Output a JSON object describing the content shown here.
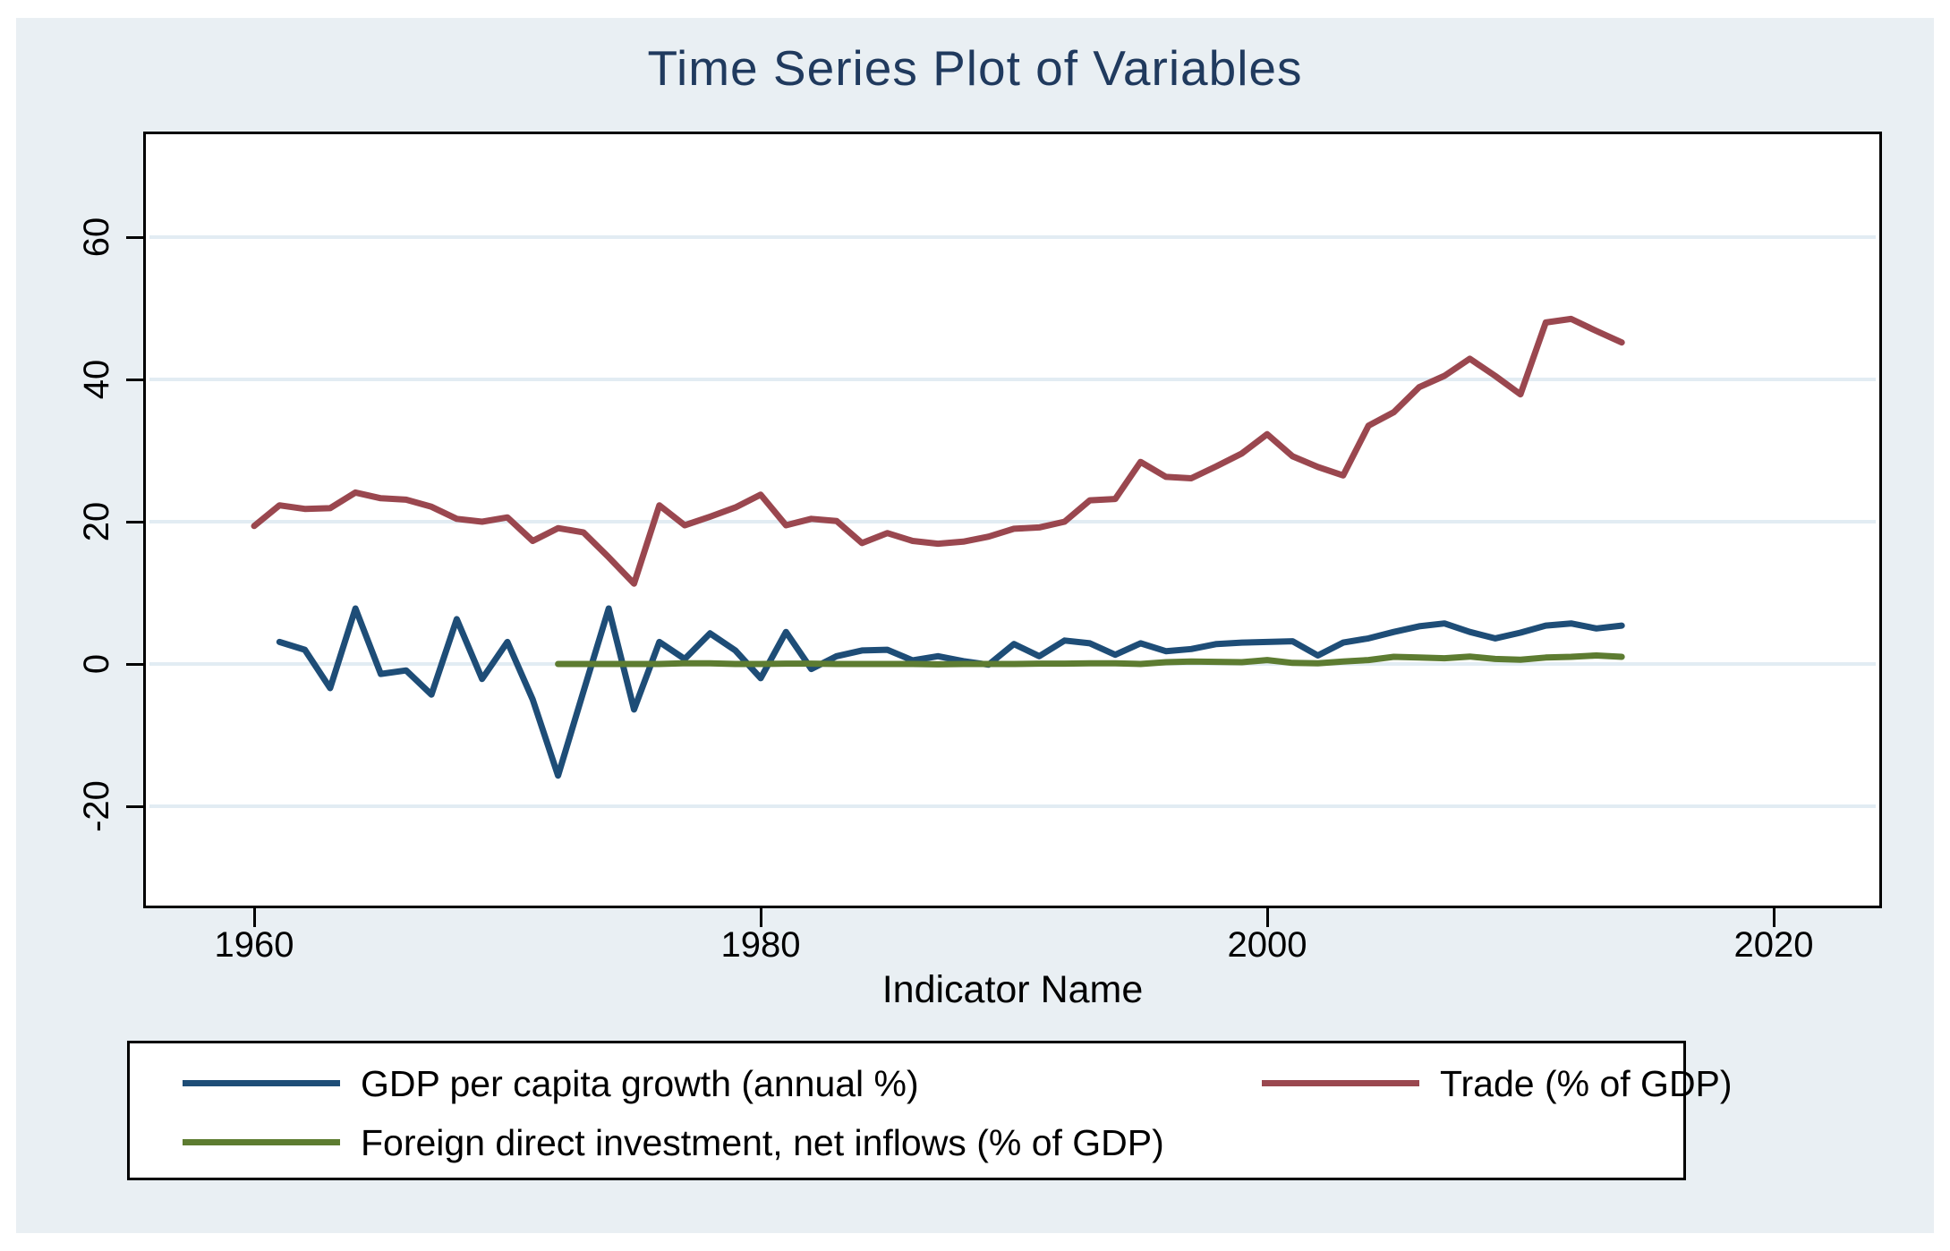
{
  "title": {
    "text": "Time Series Plot of Variables"
  },
  "x_axis": {
    "label": "Indicator Name",
    "ticks": [
      1960,
      1980,
      2000,
      2020
    ]
  },
  "y_axis": {
    "ticks": [
      60,
      40,
      20,
      0,
      -20
    ]
  },
  "legend": {
    "position": "bottom",
    "items": [
      {
        "label": "GDP per capita growth (annual %)",
        "series": 0
      },
      {
        "label": "Trade (% of GDP)",
        "series": 1
      },
      {
        "label": "Foreign direct investment, net inflows (% of GDP)",
        "series": 2
      }
    ]
  },
  "colors": {
    "background": "#e9eff3",
    "plot_background": "#ffffff",
    "grid": "#e2ecf3",
    "axis": "#000000",
    "title": "#203a5e",
    "navy": "#1e4d77",
    "maroon": "#9a474f",
    "olive": "#5d7c31"
  },
  "chart_data": {
    "type": "line",
    "title": "Time Series Plot of Variables",
    "xlabel": "Indicator Name",
    "ylabel": "",
    "xlim": [
      1955.7,
      2024.2
    ],
    "ylim": [
      -34,
      74.5
    ],
    "x_ticks": [
      1960,
      1980,
      2000,
      2020
    ],
    "y_ticks": [
      60,
      40,
      20,
      0,
      -20
    ],
    "grid": "horizontal",
    "legend_position": "bottom",
    "series": [
      {
        "name": "GDP per capita growth (annual %)",
        "color": "#1e4d77",
        "start_year": 1961,
        "values": [
          3.1,
          2.0,
          -3.4,
          7.8,
          -1.4,
          -0.9,
          -4.3,
          6.3,
          -2.1,
          3.1,
          -5.0,
          -15.7,
          -3.9,
          7.8,
          -6.4,
          3.1,
          0.7,
          4.3,
          1.9,
          -2.0,
          4.5,
          -0.7,
          1.1,
          1.9,
          2.0,
          0.5,
          1.1,
          0.4,
          -0.1,
          2.8,
          1.1,
          3.3,
          2.9,
          1.3,
          2.9,
          1.8,
          2.1,
          2.8,
          3.0,
          3.1,
          3.2,
          1.2,
          3.0,
          3.6,
          4.5,
          5.3,
          5.7,
          4.5,
          3.6,
          4.4,
          5.4,
          5.7,
          5.0,
          5.4
        ]
      },
      {
        "name": "Trade (% of GDP)",
        "color": "#9a474f",
        "start_year": 1960,
        "values": [
          19.4,
          22.3,
          21.8,
          21.9,
          24.1,
          23.3,
          23.1,
          22.1,
          20.4,
          20.0,
          20.6,
          17.3,
          19.1,
          18.5,
          15.0,
          11.3,
          22.3,
          19.5,
          20.7,
          22.0,
          23.8,
          19.5,
          20.4,
          20.1,
          17.0,
          18.4,
          17.3,
          16.9,
          17.2,
          17.9,
          19.0,
          19.2,
          20.0,
          23.0,
          23.2,
          28.4,
          26.3,
          26.1,
          27.8,
          29.6,
          32.3,
          29.2,
          27.7,
          26.5,
          33.5,
          35.4,
          38.9,
          40.5,
          42.9,
          40.5,
          37.9,
          48.0,
          48.5,
          46.8,
          45.2
        ]
      },
      {
        "name": "Foreign direct investment, net inflows (% of GDP)",
        "color": "#5d7c31",
        "start_year": 1972,
        "values": [
          0.0,
          0.0,
          0.0,
          0.0,
          0.0,
          0.1,
          0.1,
          0.0,
          0.0,
          0.05,
          0.05,
          0.0,
          0.0,
          0.0,
          0.0,
          -0.05,
          0.0,
          0.0,
          0.0,
          0.05,
          0.05,
          0.1,
          0.1,
          0.0,
          0.25,
          0.35,
          0.3,
          0.25,
          0.55,
          0.15,
          0.1,
          0.35,
          0.55,
          1.0,
          0.9,
          0.8,
          1.05,
          0.7,
          0.6,
          0.9,
          1.0,
          1.2,
          1.0
        ]
      }
    ]
  }
}
